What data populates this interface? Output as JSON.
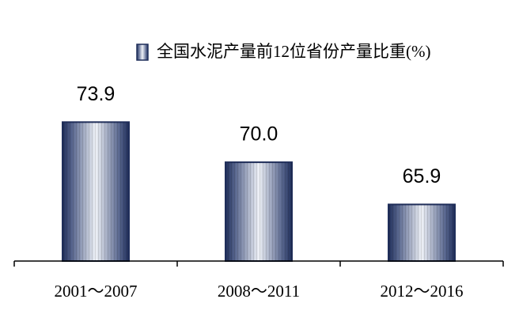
{
  "chart_data": {
    "type": "bar",
    "categories": [
      "2001～2007",
      "2008～2011",
      "2012～2016"
    ],
    "series": [
      {
        "name": "全国水泥产量前12位省份产量比重(%)",
        "color": "#1f2e5a",
        "values": [
          73.9,
          70.0,
          65.9
        ],
        "value_labels": [
          "73.9",
          "70.0",
          "65.9"
        ]
      }
    ],
    "ylim": [
      60.4,
      80
    ],
    "legend": "top-right"
  }
}
